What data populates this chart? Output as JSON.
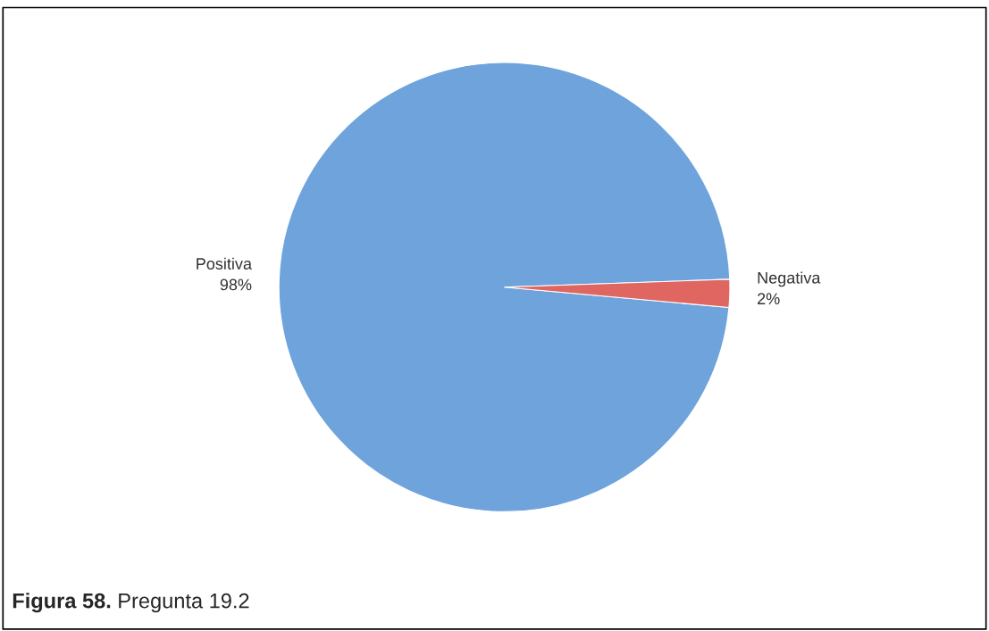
{
  "chart_data": {
    "type": "pie",
    "categories": [
      "Positiva",
      "Negativa"
    ],
    "values": [
      98,
      2
    ],
    "value_labels": [
      "98%",
      "2%"
    ],
    "colors": [
      "#6fa3dc",
      "#e06662"
    ],
    "legend": false,
    "annotations": [
      "Figura 58.",
      "Pregunta 19.2"
    ]
  }
}
